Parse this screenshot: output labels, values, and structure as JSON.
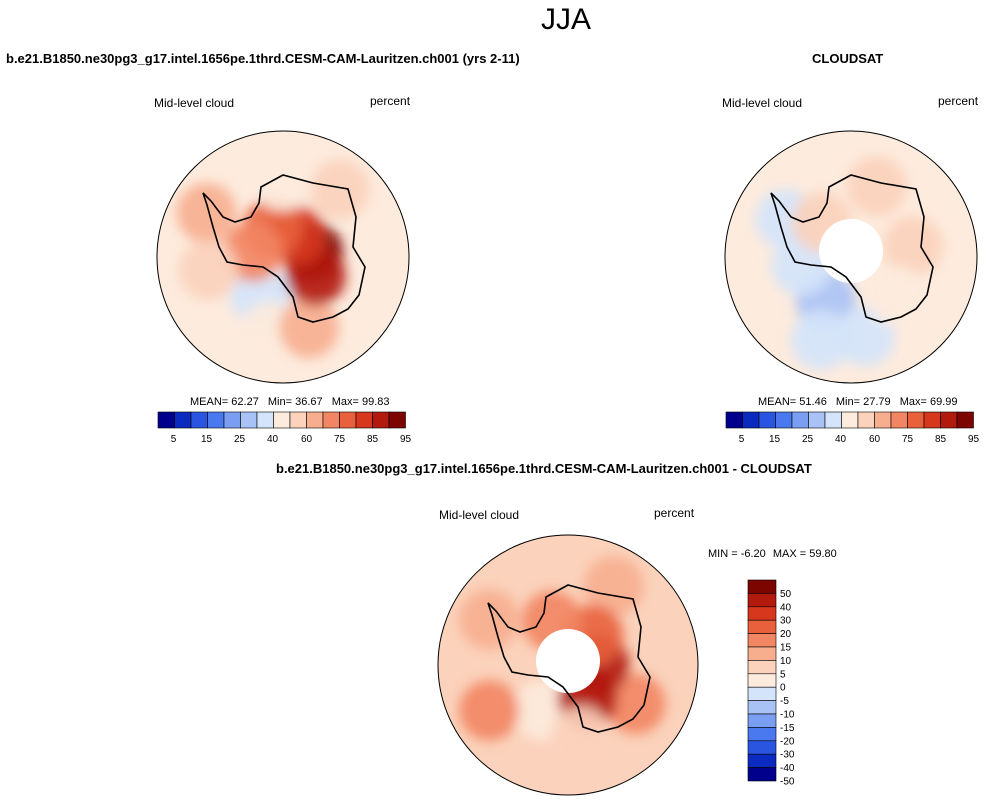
{
  "page": {
    "title": "JJA"
  },
  "colors": {
    "absolute": [
      "#00008c",
      "#0a2ac0",
      "#2a55e0",
      "#4a78ee",
      "#7a9ff2",
      "#a8c2f6",
      "#d4e4fb",
      "#fdebdd",
      "#fbd2bb",
      "#f7ae8f",
      "#f28563",
      "#e8603c",
      "#d6371d",
      "#b21a0d",
      "#7c0500"
    ],
    "difference": [
      "#00008c",
      "#0a2ac0",
      "#2a55e0",
      "#4a78ee",
      "#7a9ff2",
      "#a8c2f6",
      "#d4e4fb",
      "#fdebdd",
      "#fbd2bb",
      "#f7ae8f",
      "#f28563",
      "#e8603c",
      "#d6371d",
      "#b21a0d",
      "#7c0500"
    ],
    "map_bg": "#fdebdd",
    "coast": "#000000",
    "missing": "#ffffff"
  },
  "chart_data": [
    {
      "type": "heatmap",
      "projection": "south-polar-stereographic",
      "title": "b.e21.B1850.ne30pg3_g17.intel.1656pe.1thrd.CESM-CAM-Lauritzen.ch001 (yrs 2-11)",
      "variable": "Mid-level cloud",
      "units": "percent",
      "stats": {
        "mean_label": "MEAN=",
        "mean": "62.27",
        "min_label": "Min=",
        "min": "36.67",
        "max_label": "Max=",
        "max": "99.83"
      },
      "colorbar": {
        "orientation": "horizontal",
        "tick_labels": [
          "5",
          "15",
          "25",
          "40",
          "60",
          "75",
          "85",
          "95"
        ]
      },
      "regions": [
        {
          "lon": -150,
          "lat": -72,
          "level": 6
        },
        {
          "lon": -170,
          "lat": -60,
          "level": 7
        },
        {
          "lon": -60,
          "lat": -55,
          "level": 9
        },
        {
          "lon": 160,
          "lat": -60,
          "level": 9
        },
        {
          "lon": 40,
          "lat": -55,
          "level": 8
        },
        {
          "lon": 80,
          "lat": -78,
          "level": 14
        },
        {
          "lon": 120,
          "lat": -75,
          "level": 13
        },
        {
          "lon": 30,
          "lat": -80,
          "level": 12
        },
        {
          "lon": -20,
          "lat": -78,
          "level": 11
        },
        {
          "lon": -80,
          "lat": -78,
          "level": 10
        },
        {
          "lon": 0,
          "lat": -60,
          "level": 7
        },
        {
          "lon": -100,
          "lat": -60,
          "level": 8
        }
      ]
    },
    {
      "type": "heatmap",
      "projection": "south-polar-stereographic",
      "title": "CLOUDSAT",
      "variable": "Mid-level cloud",
      "units": "percent",
      "stats": {
        "mean_label": "MEAN=",
        "mean": "51.46",
        "min_label": "Min=",
        "min": "27.79",
        "max_label": "Max=",
        "max": "69.99"
      },
      "colorbar": {
        "orientation": "horizontal",
        "tick_labels": [
          "5",
          "15",
          "25",
          "40",
          "60",
          "75",
          "85",
          "95"
        ]
      },
      "missing_polar_cap_lat": -82,
      "regions": [
        {
          "lon": -150,
          "lat": -70,
          "level": 5
        },
        {
          "lon": -160,
          "lat": -55,
          "level": 6
        },
        {
          "lon": 170,
          "lat": -58,
          "level": 6
        },
        {
          "lon": -60,
          "lat": -60,
          "level": 6
        },
        {
          "lon": 20,
          "lat": -60,
          "level": 8
        },
        {
          "lon": 80,
          "lat": -65,
          "level": 8
        },
        {
          "lon": 130,
          "lat": -66,
          "level": 7
        },
        {
          "lon": -100,
          "lat": -70,
          "level": 6
        },
        {
          "lon": -40,
          "lat": -72,
          "level": 8
        }
      ]
    },
    {
      "type": "heatmap",
      "projection": "south-polar-stereographic",
      "title": "b.e21.B1850.ne30pg3_g17.intel.1656pe.1thrd.CESM-CAM-Lauritzen.ch001 - CLOUDSAT",
      "variable": "Mid-level cloud",
      "units": "percent",
      "stats": {
        "min_label": "MIN =",
        "min": "-6.20",
        "max_label": "MAX =",
        "max": "59.80"
      },
      "colorbar": {
        "orientation": "vertical",
        "tick_labels": [
          "50",
          "40",
          "30",
          "20",
          "15",
          "10",
          "5",
          "0",
          "-5",
          "-10",
          "-15",
          "-20",
          "-30",
          "-40",
          "-50"
        ]
      },
      "missing_polar_cap_lat": -82,
      "regions": [
        {
          "lon": -150,
          "lat": -70,
          "level": 7
        },
        {
          "lon": -60,
          "lat": -55,
          "level": 9
        },
        {
          "lon": 30,
          "lat": -55,
          "level": 9
        },
        {
          "lon": 120,
          "lat": -60,
          "level": 10
        },
        {
          "lon": -120,
          "lat": -55,
          "level": 10
        },
        {
          "lon": 90,
          "lat": -78,
          "level": 13
        },
        {
          "lon": 150,
          "lat": -75,
          "level": 13
        },
        {
          "lon": 40,
          "lat": -75,
          "level": 11
        },
        {
          "lon": -20,
          "lat": -72,
          "level": 10
        },
        {
          "lon": 170,
          "lat": -62,
          "level": 8
        }
      ]
    }
  ]
}
